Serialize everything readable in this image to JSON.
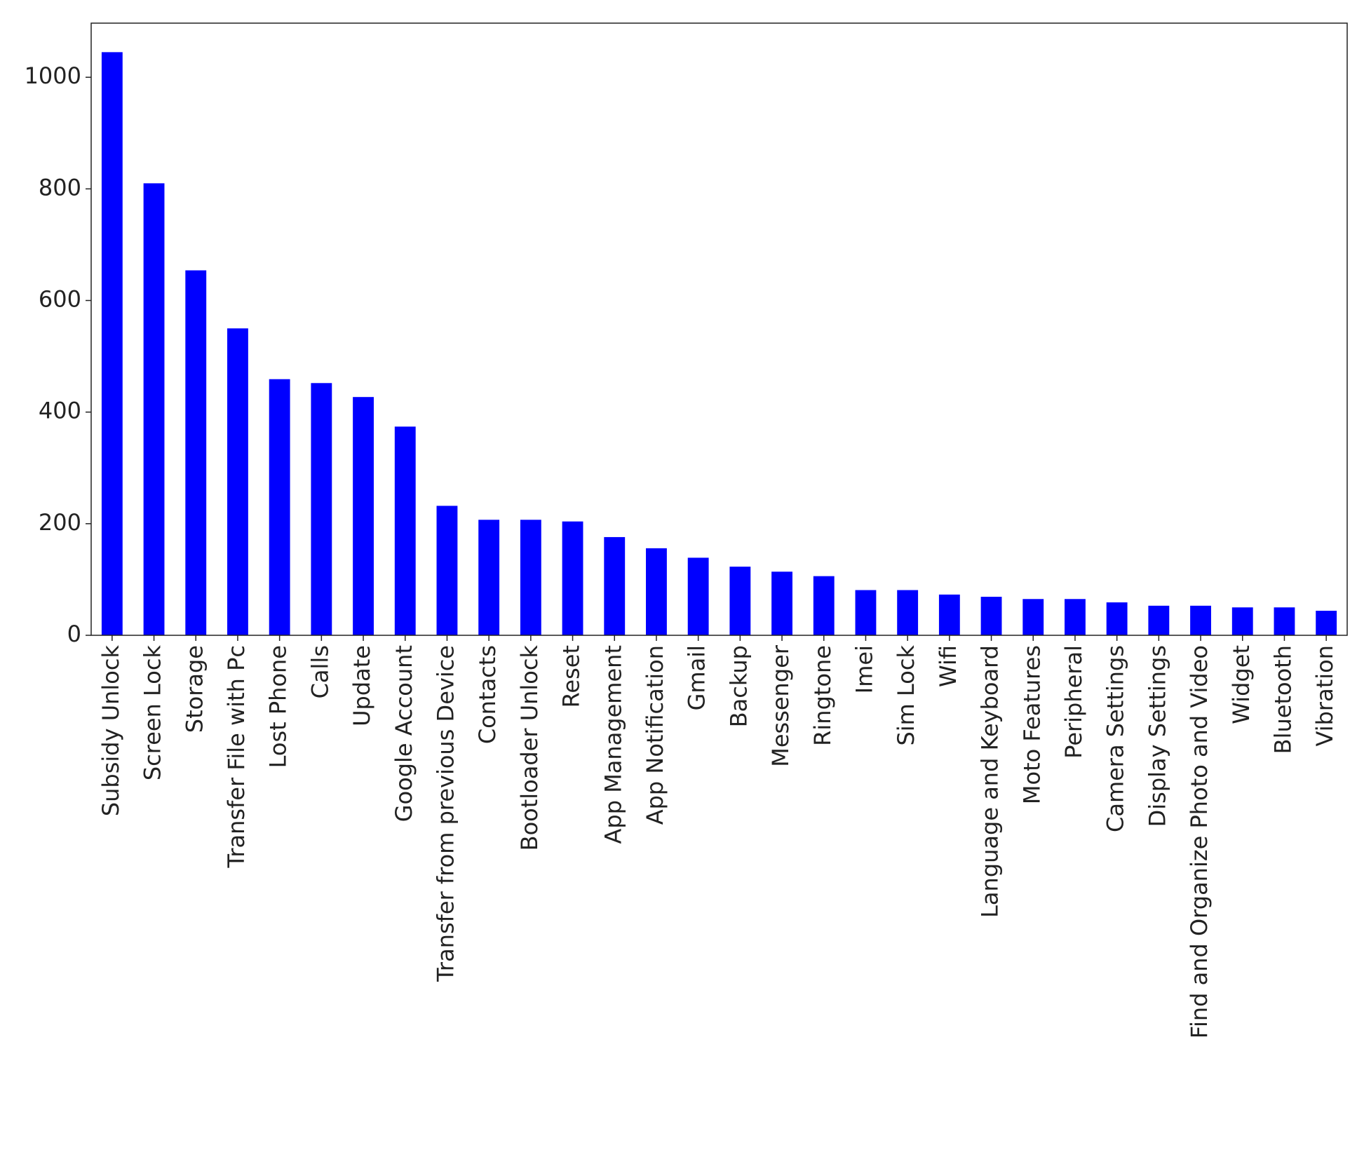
{
  "chart_data": {
    "type": "bar",
    "categories": [
      "Subsidy Unlock",
      "Screen Lock",
      "Storage",
      "Transfer File with Pc",
      "Lost Phone",
      "Calls",
      "Update",
      "Google Account",
      "Transfer from previous Device",
      "Contacts",
      "Bootloader Unlock",
      "Reset",
      "App Management",
      "App Notification",
      "Gmail",
      "Backup",
      "Messenger",
      "Ringtone",
      "Imei",
      "Sim Lock",
      "Wifi",
      "Language and Keyboard",
      "Moto Features",
      "Peripheral",
      "Camera Settings",
      "Display Settings",
      "Find and Organize Photo and Video",
      "Widget",
      "Bluetooth",
      "Vibration"
    ],
    "values": [
      1045,
      810,
      654,
      550,
      459,
      452,
      427,
      374,
      232,
      207,
      207,
      204,
      176,
      156,
      139,
      123,
      114,
      106,
      81,
      81,
      73,
      69,
      65,
      65,
      59,
      53,
      53,
      50,
      50,
      44
    ],
    "color": "#0000ff",
    "ylim": [
      0,
      1097
    ],
    "yticks": [
      0,
      200,
      400,
      600,
      800,
      1000
    ],
    "grid": false
  }
}
